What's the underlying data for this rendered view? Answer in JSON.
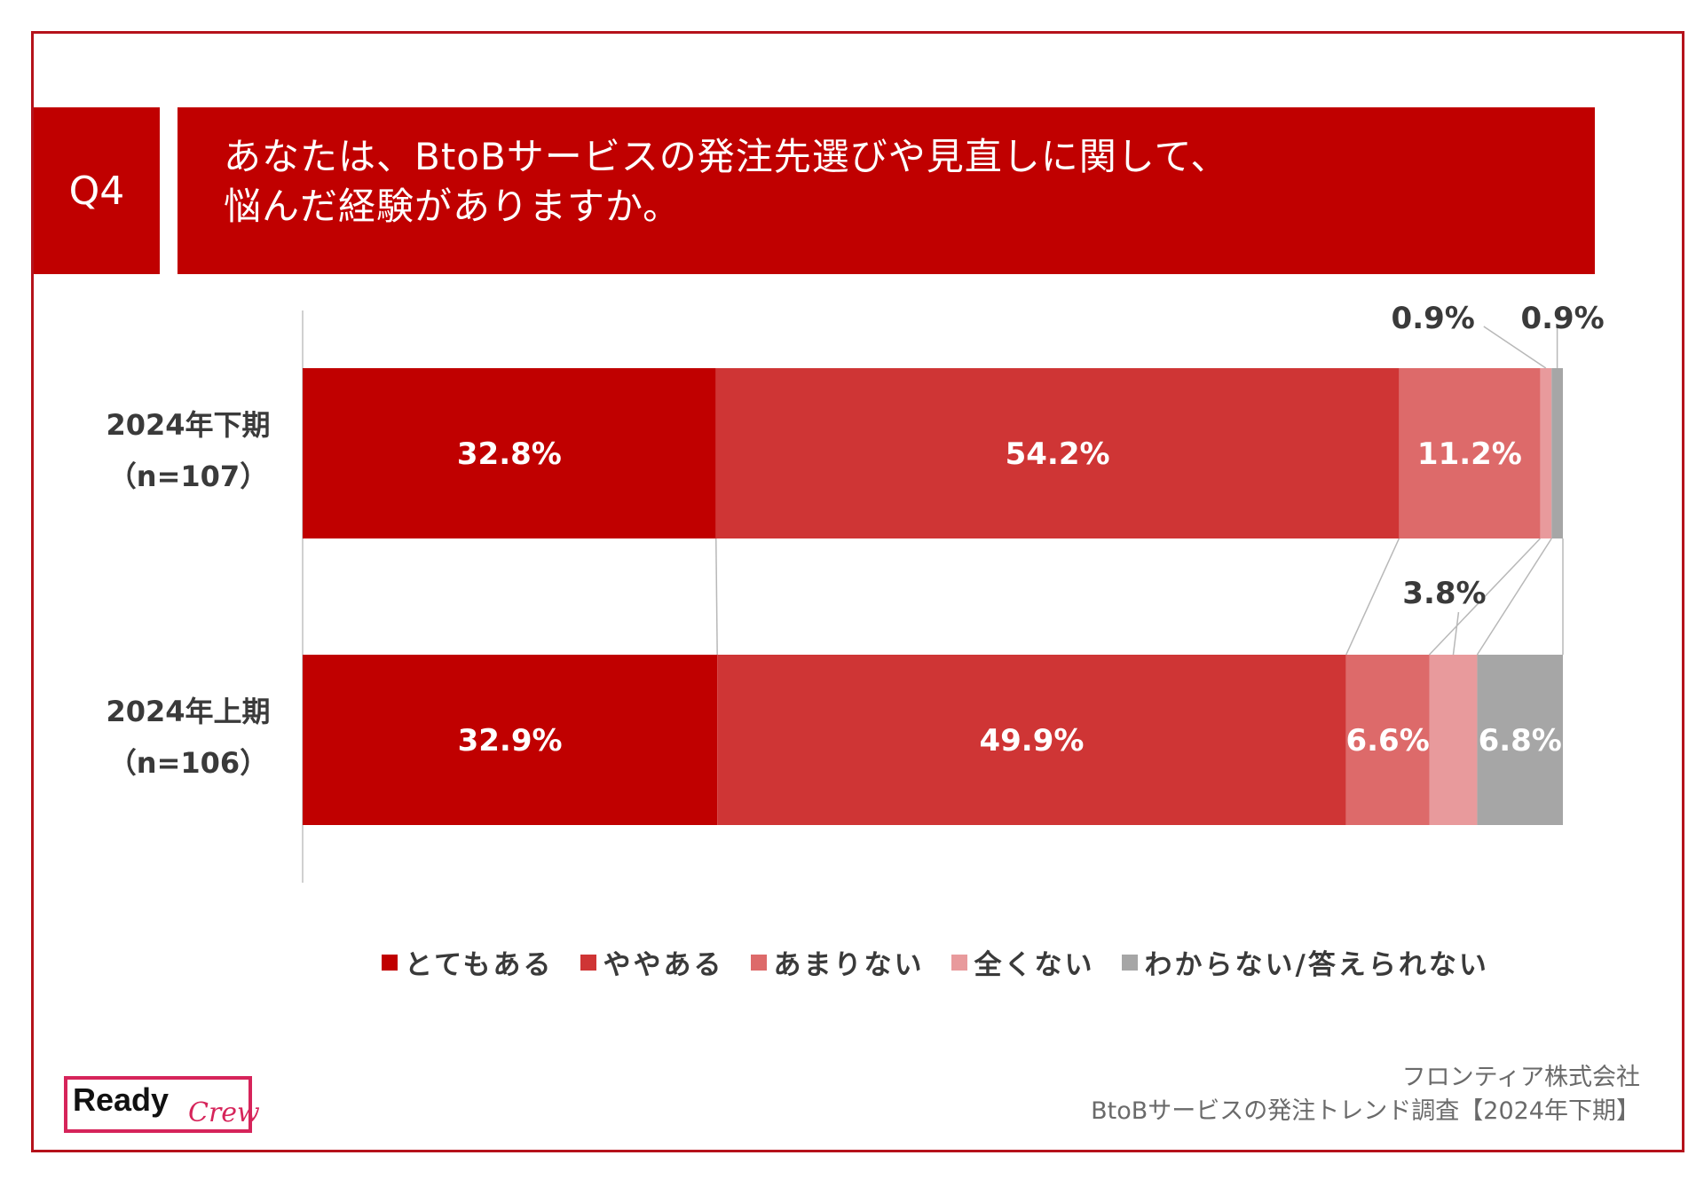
{
  "header": {
    "question_label": "Q4",
    "title_lines": [
      "あなたは、BtoBサービスの発注先選びや見直しに関して、",
      "悩んだ経験がありますか。"
    ]
  },
  "colors": {
    "accent": "#c00000",
    "series": [
      "#c00000",
      "#cf3535",
      "#dd6a6a",
      "#e89a9c",
      "#a6a6a6"
    ]
  },
  "chart_data": {
    "type": "bar",
    "orientation": "horizontal",
    "stacked": true,
    "normalized_percent": true,
    "categories": [
      {
        "line1": "2024年下期",
        "line2": "（n=107）"
      },
      {
        "line1": "2024年上期",
        "line2": "（n=106）"
      }
    ],
    "series": [
      {
        "name": "とてもある",
        "values": [
          32.8,
          32.9
        ],
        "labels": [
          "32.8%",
          "32.9%"
        ]
      },
      {
        "name": "ややある",
        "values": [
          54.2,
          49.9
        ],
        "labels": [
          "54.2%",
          "49.9%"
        ]
      },
      {
        "name": "あまりない",
        "values": [
          11.2,
          6.6
        ],
        "labels": [
          "11.2%",
          "6.6%"
        ]
      },
      {
        "name": "全くない",
        "values": [
          0.9,
          3.8
        ],
        "labels": [
          "0.9%",
          "3.8%"
        ]
      },
      {
        "name": "わからない/答えられない",
        "values": [
          0.9,
          6.8
        ],
        "labels": [
          "0.9%",
          "6.8%"
        ]
      }
    ],
    "xlim": [
      0,
      100
    ],
    "legend_position": "bottom",
    "series_connector_lines": true
  },
  "logo": {
    "main": "Ready",
    "sub": "Crew"
  },
  "footer": {
    "line1": "フロンティア株式会社",
    "line2": "BtoBサービスの発注トレンド調査【2024年下期】"
  }
}
